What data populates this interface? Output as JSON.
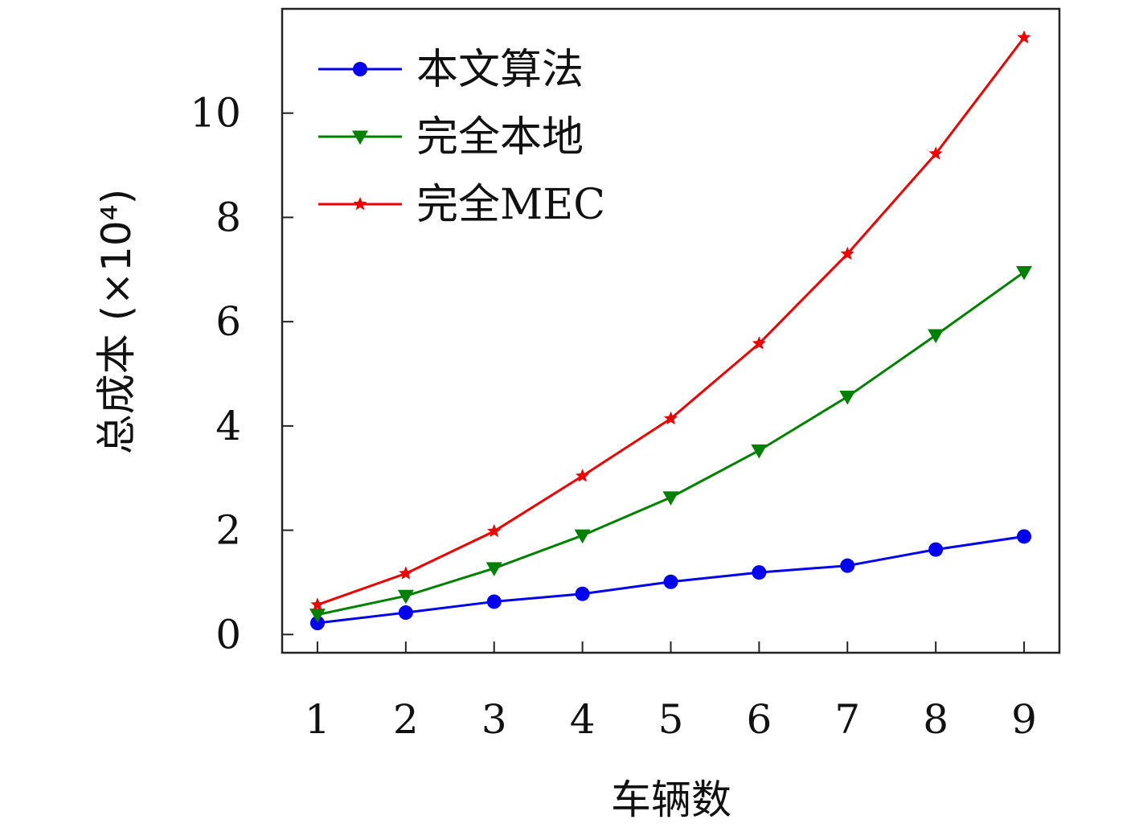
{
  "chart_data": {
    "type": "line",
    "title": "",
    "xlabel": "车辆数",
    "ylabel": "总成本 (×10⁴)",
    "x": [
      1,
      2,
      3,
      4,
      5,
      6,
      7,
      8,
      9
    ],
    "xlim": [
      0.6,
      9.4
    ],
    "ylim": [
      -0.35,
      12.0
    ],
    "xticks": [
      1,
      2,
      3,
      4,
      5,
      6,
      7,
      8,
      9
    ],
    "yticks": [
      0,
      2,
      4,
      6,
      8,
      10
    ],
    "grid": false,
    "legend_position": "top-left",
    "series": [
      {
        "name": "本文算法",
        "color": "#0000ee",
        "marker": "circle",
        "values": [
          0.22,
          0.42,
          0.63,
          0.78,
          1.01,
          1.19,
          1.32,
          1.63,
          1.88
        ]
      },
      {
        "name": "完全本地",
        "color": "#008000",
        "marker": "triangle-down",
        "values": [
          0.38,
          0.74,
          1.27,
          1.9,
          2.63,
          3.53,
          4.56,
          5.74,
          6.95
        ]
      },
      {
        "name": "完全MEC",
        "color": "#ee0000",
        "marker": "star",
        "values": [
          0.57,
          1.17,
          1.98,
          3.04,
          4.14,
          5.58,
          7.3,
          9.22,
          11.45
        ]
      }
    ]
  }
}
